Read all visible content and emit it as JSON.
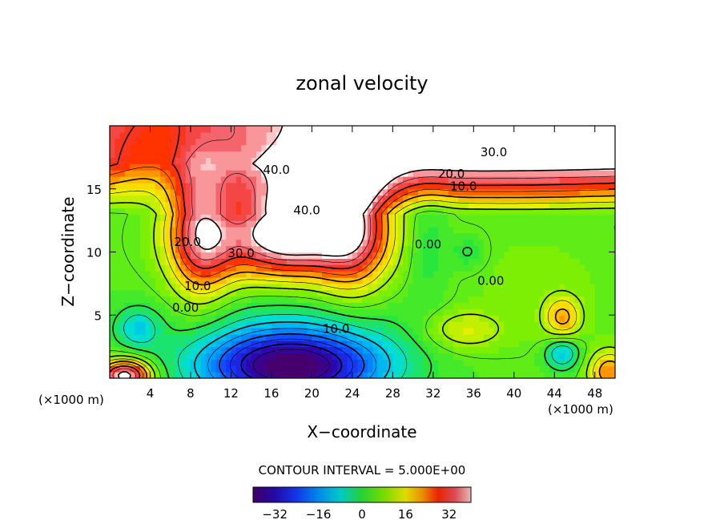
{
  "chart_data": {
    "type": "heatmap",
    "title": "zonal velocity",
    "xlabel": "X−coordinate",
    "ylabel": "Z−coordinate",
    "x_unit_left": "(×1000 m)",
    "x_unit_right": "(×1000 m)",
    "xlim": [
      0,
      50
    ],
    "ylim": [
      0,
      20
    ],
    "x_ticks": [
      4,
      8,
      12,
      16,
      20,
      24,
      28,
      32,
      36,
      40,
      44,
      48
    ],
    "y_ticks": [
      5,
      10,
      15
    ],
    "contour_interval_text": "CONTOUR INTERVAL = 5.000E+00",
    "contour_labels": [
      {
        "text": "40.0",
        "x": 16.5,
        "y": 16.5
      },
      {
        "text": "40.0",
        "x": 19.5,
        "y": 13.3
      },
      {
        "text": "30.0",
        "x": 38.0,
        "y": 17.9
      },
      {
        "text": "30.0",
        "x": 13.0,
        "y": 9.9
      },
      {
        "text": "20.0",
        "x": 33.8,
        "y": 16.2
      },
      {
        "text": "20.0",
        "x": 7.7,
        "y": 10.8
      },
      {
        "text": "10.0",
        "x": 35.0,
        "y": 15.2
      },
      {
        "text": "10.0",
        "x": 8.7,
        "y": 7.3
      },
      {
        "text": "10.0",
        "x": 22.4,
        "y": 3.9
      },
      {
        "text": "0.00",
        "x": 7.5,
        "y": 5.6
      },
      {
        "text": "0.00",
        "x": 31.5,
        "y": 10.6
      },
      {
        "text": "0.00",
        "x": 37.7,
        "y": 7.7
      }
    ],
    "colorbar": {
      "range": [
        -40,
        40
      ],
      "ticks": [
        -32,
        -16,
        0,
        16,
        32
      ]
    },
    "features": [
      {
        "kind": "max",
        "x": 18.0,
        "y": 13.0,
        "value": 40
      },
      {
        "kind": "max",
        "x": 22.0,
        "y": 19.0,
        "value": 40
      },
      {
        "kind": "min",
        "x": 18.0,
        "y": 0.8,
        "value": -35
      },
      {
        "kind": "max",
        "x": 1.5,
        "y": 0.3,
        "value": 35
      },
      {
        "kind": "max",
        "x": 44.8,
        "y": 4.8,
        "value": 20
      },
      {
        "kind": "min",
        "x": 44.8,
        "y": 2.0,
        "value": -8
      },
      {
        "kind": "min",
        "x": 2.8,
        "y": 4.0,
        "value": -7
      }
    ],
    "grid": false
  }
}
